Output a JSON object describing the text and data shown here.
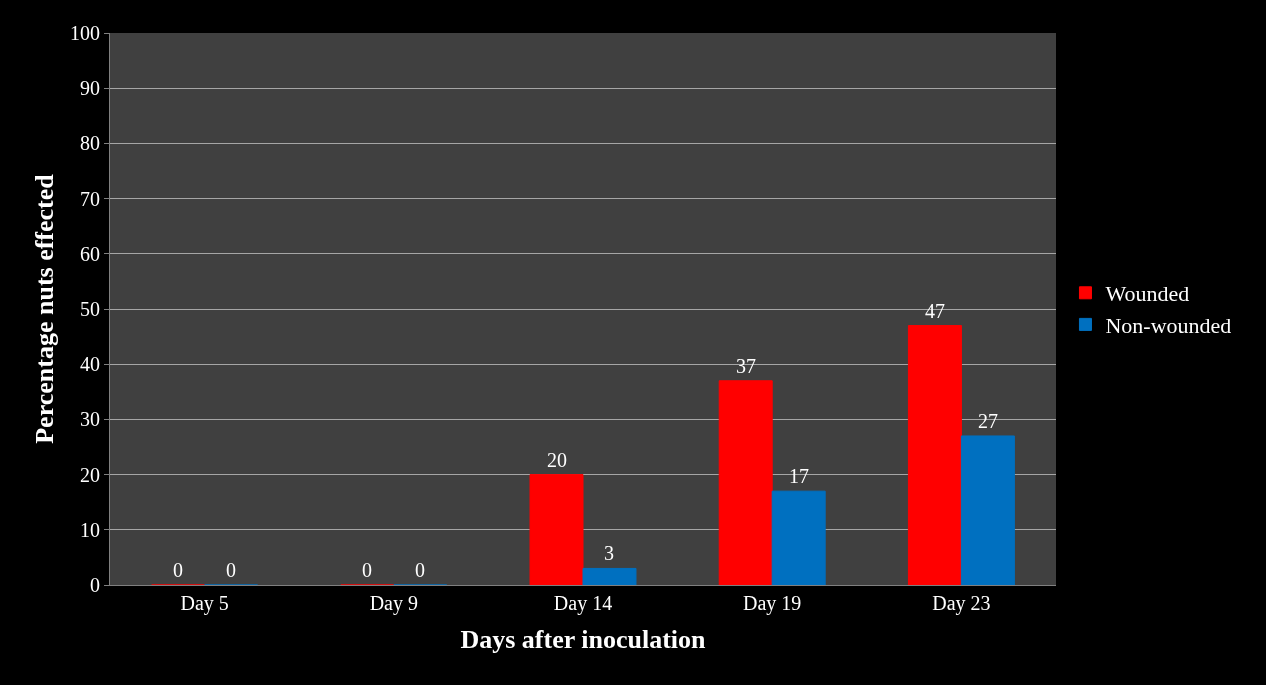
{
  "chart_data": {
    "type": "bar",
    "xlabel": "Days after inoculation",
    "ylabel": "Percentage nuts effected",
    "categories": [
      "Day 5",
      "Day 9",
      "Day 14",
      "Day 19",
      "Day 23"
    ],
    "series": [
      {
        "name": "Wounded",
        "color": "#ff0000",
        "values": [
          0,
          0,
          20,
          37,
          47
        ]
      },
      {
        "name": "Non-wounded",
        "color": "#0070c0",
        "values": [
          0,
          0,
          3,
          17,
          27
        ]
      }
    ],
    "ylim": [
      0,
      100
    ],
    "yticks": [
      0,
      10,
      20,
      30,
      40,
      50,
      60,
      70,
      80,
      90,
      100
    ],
    "grid": "y",
    "legend": "right",
    "data_labels": true
  }
}
